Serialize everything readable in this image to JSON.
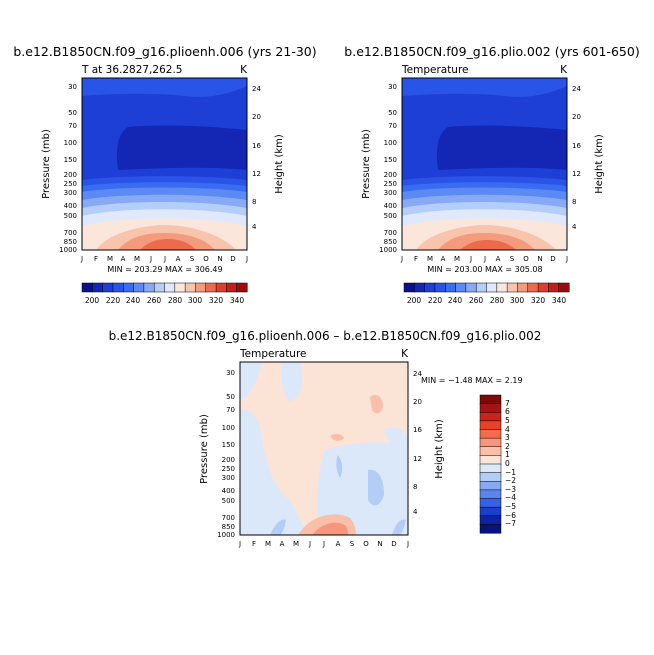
{
  "chart_data": [
    {
      "type": "heatmap",
      "title": "b.e12.B1850CN.f09_g16.plioenh.006 (yrs 21-30)",
      "subtitle_left": "T at 36.2827,262.5",
      "subtitle_right": "K",
      "xlabel": "",
      "ylabel": "Pressure (mb)",
      "ylabel_right": "Height (km)",
      "x_ticks": [
        "J",
        "F",
        "M",
        "A",
        "M",
        "J",
        "J",
        "A",
        "S",
        "O",
        "N",
        "D",
        "J"
      ],
      "y_ticks": [
        "30",
        "50",
        "70",
        "100",
        "150",
        "200",
        "250",
        "300",
        "400",
        "500",
        "700",
        "850",
        "1000"
      ],
      "height_ticks": [
        "24",
        "20",
        "16",
        "12",
        "8",
        "4"
      ],
      "stats": "MIN = 203.29  MAX = 306.49",
      "colorbar_labels": [
        "200",
        "220",
        "240",
        "260",
        "280",
        "300",
        "320",
        "340"
      ]
    },
    {
      "type": "heatmap",
      "title": "b.e12.B1850CN.f09_g16.plio.002 (yrs 601-650)",
      "subtitle_left": "Temperature",
      "subtitle_right": "K",
      "xlabel": "",
      "ylabel": "Pressure (mb)",
      "ylabel_right": "Height (km)",
      "x_ticks": [
        "J",
        "F",
        "M",
        "A",
        "M",
        "J",
        "J",
        "A",
        "S",
        "O",
        "N",
        "D",
        "J"
      ],
      "y_ticks": [
        "30",
        "50",
        "70",
        "100",
        "150",
        "200",
        "250",
        "300",
        "400",
        "500",
        "700",
        "850",
        "1000"
      ],
      "height_ticks": [
        "24",
        "20",
        "16",
        "12",
        "8",
        "4"
      ],
      "stats": "MIN = 203.00  MAX = 305.08",
      "colorbar_labels": [
        "200",
        "220",
        "240",
        "260",
        "280",
        "300",
        "320",
        "340"
      ]
    },
    {
      "type": "heatmap",
      "title": "b.e12.B1850CN.f09_g16.plioenh.006 – b.e12.B1850CN.f09_g16.plio.002",
      "subtitle_left": "Temperature",
      "subtitle_right": "K",
      "xlabel": "",
      "ylabel": "Pressure (mb)",
      "ylabel_right": "Height (km)",
      "x_ticks": [
        "J",
        "F",
        "M",
        "A",
        "M",
        "J",
        "J",
        "A",
        "S",
        "O",
        "N",
        "D",
        "J"
      ],
      "y_ticks": [
        "30",
        "50",
        "70",
        "100",
        "150",
        "200",
        "250",
        "300",
        "400",
        "500",
        "700",
        "850",
        "1000"
      ],
      "height_ticks": [
        "24",
        "20",
        "16",
        "12",
        "8",
        "4"
      ],
      "stats": "MIN =  −1.48  MAX =   2.19",
      "colorbar_labels": [
        "7",
        "6",
        "5",
        "4",
        "3",
        "2",
        "1",
        "0",
        "−1",
        "−2",
        "−3",
        "−4",
        "−5",
        "−6",
        "−7"
      ]
    }
  ],
  "palette": {
    "abs": [
      "#0a0f8c",
      "#1426b4",
      "#1e3fd6",
      "#2855e8",
      "#3a6cf2",
      "#5b8af4",
      "#87a9f6",
      "#b5cdf9",
      "#dfe9fb",
      "#fbe6db",
      "#f8c4ac",
      "#f39b7c",
      "#ec6b4f",
      "#dd3f2a",
      "#c0211a",
      "#9b0d0d"
    ],
    "diff": [
      "#7d0909",
      "#a51414",
      "#cc2219",
      "#e84226",
      "#f36b4a",
      "#f7967a",
      "#f9bfa8",
      "#fbe3d6",
      "#dbe8fa",
      "#b3cdf6",
      "#85a9f2",
      "#5a85ee",
      "#3461e6",
      "#1a3fcc",
      "#0d23a2",
      "#08137a"
    ]
  }
}
